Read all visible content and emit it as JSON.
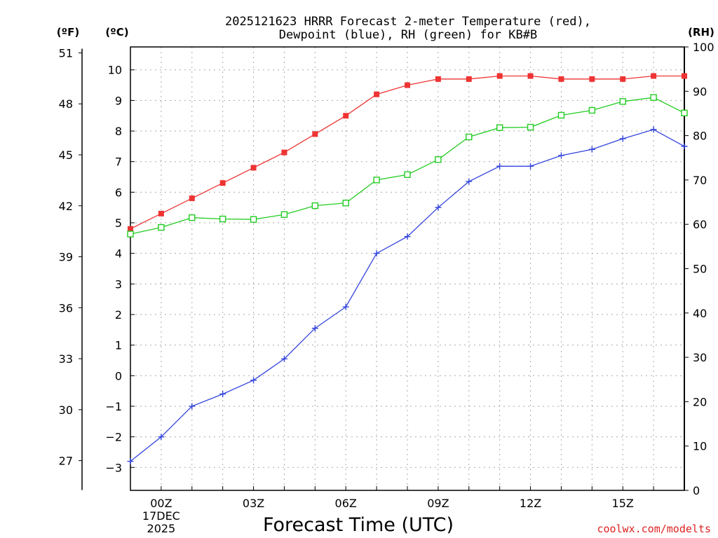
{
  "chart_data": {
    "type": "line",
    "title_line1": "2025121623 HRRR Forecast 2-meter Temperature (red),",
    "title_line2": "Dewpoint (blue), RH (green) for KB#B",
    "xlabel": "Forecast Time (UTC)",
    "x_hours": [
      -1,
      0,
      1,
      2,
      3,
      4,
      5,
      6,
      7,
      8,
      9,
      10,
      11,
      12,
      13,
      14,
      15,
      16,
      17
    ],
    "x_ticks": [
      {
        "hour": 0,
        "label": "00Z",
        "sub1": "17DEC",
        "sub2": "2025"
      },
      {
        "hour": 3,
        "label": "03Z"
      },
      {
        "hour": 6,
        "label": "06Z"
      },
      {
        "hour": 9,
        "label": "09Z"
      },
      {
        "hour": 12,
        "label": "12Z"
      },
      {
        "hour": 15,
        "label": "15Z"
      }
    ],
    "xlim": [
      -1,
      17
    ],
    "celsius_axis": {
      "unit_label": "(ºC)",
      "min": -3.75,
      "max": 10.75,
      "ticks": [
        "-3",
        "-2",
        "-1",
        "0",
        "1",
        "2",
        "3",
        "4",
        "5",
        "6",
        "7",
        "8",
        "9",
        "10"
      ]
    },
    "fahrenheit_axis": {
      "unit_label": "(ºF)",
      "ticks": [
        "27",
        "30",
        "33",
        "36",
        "39",
        "42",
        "45",
        "48",
        "51"
      ]
    },
    "rh_axis": {
      "unit_label": "(RH)",
      "min": 0,
      "max": 100,
      "ticks": [
        "0",
        "10",
        "20",
        "30",
        "40",
        "50",
        "60",
        "70",
        "80",
        "90",
        "100"
      ]
    },
    "series": [
      {
        "name": "Temperature",
        "axis": "celsius",
        "color": "#ee3333",
        "marker": "filled-square",
        "values": [
          4.8,
          5.3,
          5.8,
          6.3,
          6.8,
          7.3,
          7.9,
          8.5,
          9.2,
          9.5,
          9.7,
          9.7,
          9.8,
          9.8,
          9.7,
          9.7,
          9.7,
          9.8,
          9.8
        ]
      },
      {
        "name": "Dewpoint",
        "axis": "celsius",
        "color": "#3344dd",
        "marker": "plus",
        "values": [
          -2.8,
          -2.0,
          -1.0,
          -0.6,
          -0.15,
          0.55,
          1.55,
          2.25,
          4.0,
          4.55,
          5.5,
          6.35,
          6.85,
          6.85,
          7.2,
          7.4,
          7.75,
          8.05,
          7.5
        ]
      },
      {
        "name": "RH",
        "axis": "rh",
        "color": "#22cc22",
        "marker": "open-square",
        "values": [
          57.8,
          59.3,
          61.5,
          61.2,
          61.1,
          62.2,
          64.2,
          64.8,
          70.0,
          71.2,
          74.6,
          79.7,
          81.8,
          81.9,
          84.6,
          85.7,
          87.7,
          88.6,
          85.1
        ]
      }
    ],
    "grid": true
  },
  "credit": "coolwx.com/modelts",
  "colors": {
    "credit": "#dd2222",
    "grid": "#aaaaaa"
  }
}
